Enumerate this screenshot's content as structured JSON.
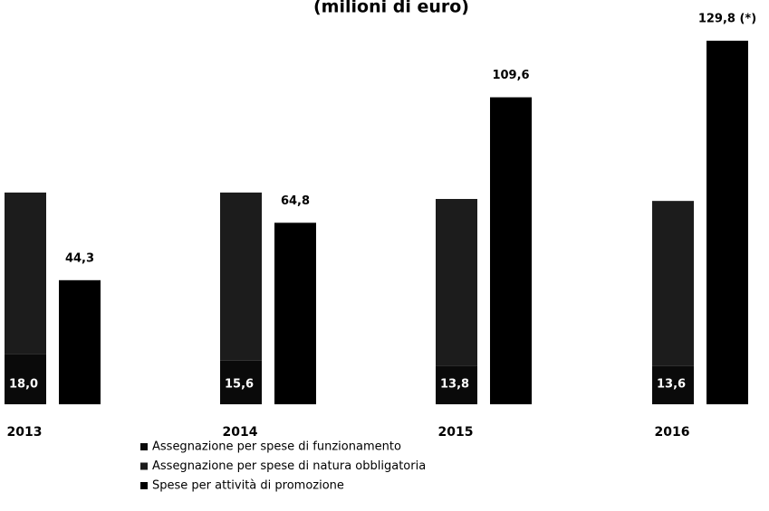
{
  "chart_data": {
    "type": "bar",
    "title": "(milioni di euro)",
    "categories": [
      "2013",
      "2014",
      "2015",
      "2016"
    ],
    "series": [
      {
        "name": "Assegnazione per spese di funzionamento",
        "color": "#0a0a0a",
        "values": [
          18.0,
          15.6,
          13.8,
          13.6
        ],
        "value_labels": [
          "18,0",
          "15,6",
          "13,8",
          "13,6"
        ]
      },
      {
        "name": "Assegnazione per spese di natura obbligatoria",
        "color": "#1c1c1c",
        "values": [
          57.6,
          60.0,
          59.5,
          59.0
        ]
      },
      {
        "name": "Spese per attività di promozione",
        "color": "#000000",
        "values": [
          44.3,
          64.8,
          109.6,
          129.8
        ],
        "value_labels": [
          "44,3",
          "64,8",
          "109,6",
          "129,8 (*)"
        ]
      }
    ]
  }
}
